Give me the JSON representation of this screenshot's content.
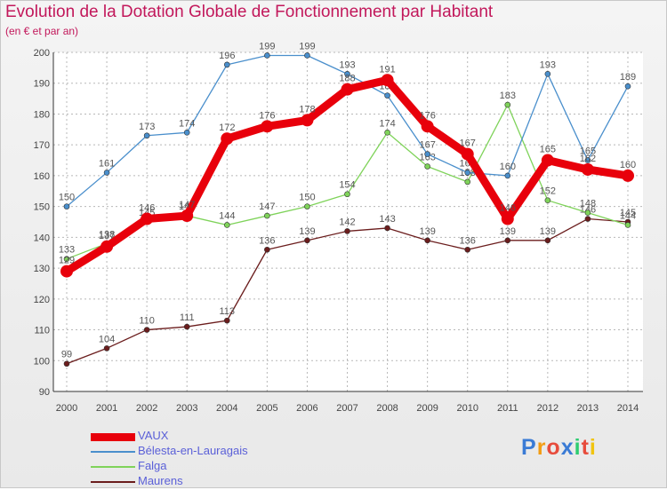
{
  "header": {
    "title": "Evolution de la Dotation Globale de Fonctionnement par Habitant",
    "subtitle": "(en € et par an)"
  },
  "logo": {
    "letters": [
      "P",
      "r",
      "o",
      "x",
      "i",
      "t",
      "i"
    ],
    "colors": [
      "#3a7bd5",
      "#f39c12",
      "#e74c3c",
      "#3a7bd5",
      "#2ecc71",
      "#e74c3c",
      "#f1c40f"
    ]
  },
  "chart_data": {
    "type": "line",
    "title": "Evolution de la Dotation Globale de Fonctionnement par Habitant",
    "ylabel": "(en € et par an)",
    "xlabel": "",
    "x": [
      "2000",
      "2001",
      "2002",
      "2003",
      "2004",
      "2005",
      "2006",
      "2007",
      "2008",
      "2009",
      "2010",
      "2011",
      "2012",
      "2013",
      "2014"
    ],
    "ylim": [
      90,
      200
    ],
    "yticks": [
      90,
      100,
      110,
      120,
      130,
      140,
      150,
      160,
      170,
      180,
      190,
      200
    ],
    "grid": true,
    "legend_position": "bottom-left",
    "series": [
      {
        "name": "VAUX",
        "color": "#e8000b",
        "values": [
          129,
          137,
          146,
          147,
          172,
          176,
          178,
          188,
          191,
          176,
          167,
          146,
          165,
          162,
          160
        ]
      },
      {
        "name": "Bélesta-en-Lauragais",
        "color": "#4a8fcc",
        "values": [
          150,
          161,
          173,
          174,
          196,
          199,
          199,
          193,
          186,
          167,
          161,
          160,
          193,
          165,
          189
        ]
      },
      {
        "name": "Falga",
        "color": "#7fd35a",
        "values": [
          133,
          138,
          145,
          147,
          144,
          147,
          150,
          154,
          174,
          163,
          158,
          183,
          152,
          148,
          144
        ]
      },
      {
        "name": "Maurens",
        "color": "#6b1d1d",
        "values": [
          99,
          104,
          110,
          111,
          113,
          136,
          139,
          142,
          143,
          139,
          136,
          139,
          139,
          146,
          145
        ]
      }
    ]
  }
}
